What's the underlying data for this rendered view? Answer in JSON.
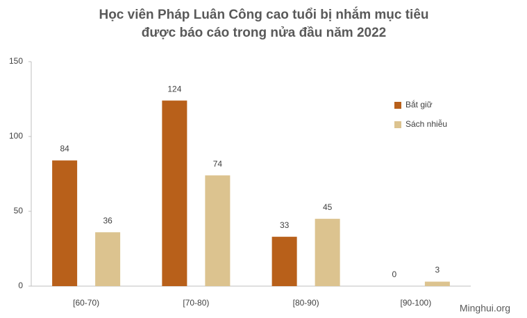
{
  "chart_data": {
    "type": "bar",
    "title": [
      "Học viên Pháp Luân Công cao tuổi bị nhắm mục tiêu",
      "được báo cáo trong nửa đầu năm 2022"
    ],
    "categories": [
      "[60-70)",
      "[70-80)",
      "[80-90)",
      "[90-100)"
    ],
    "series": [
      {
        "name": "Bắt giữ",
        "color": "#b8601a",
        "values": [
          84,
          124,
          33,
          0
        ]
      },
      {
        "name": "Sách nhiễu",
        "color": "#dcc38f",
        "values": [
          36,
          74,
          45,
          3
        ]
      }
    ],
    "ylim": [
      0,
      150
    ],
    "yticks": [
      0,
      50,
      100,
      150
    ],
    "grid": false,
    "legend": "right",
    "source": "Minghui.org"
  }
}
